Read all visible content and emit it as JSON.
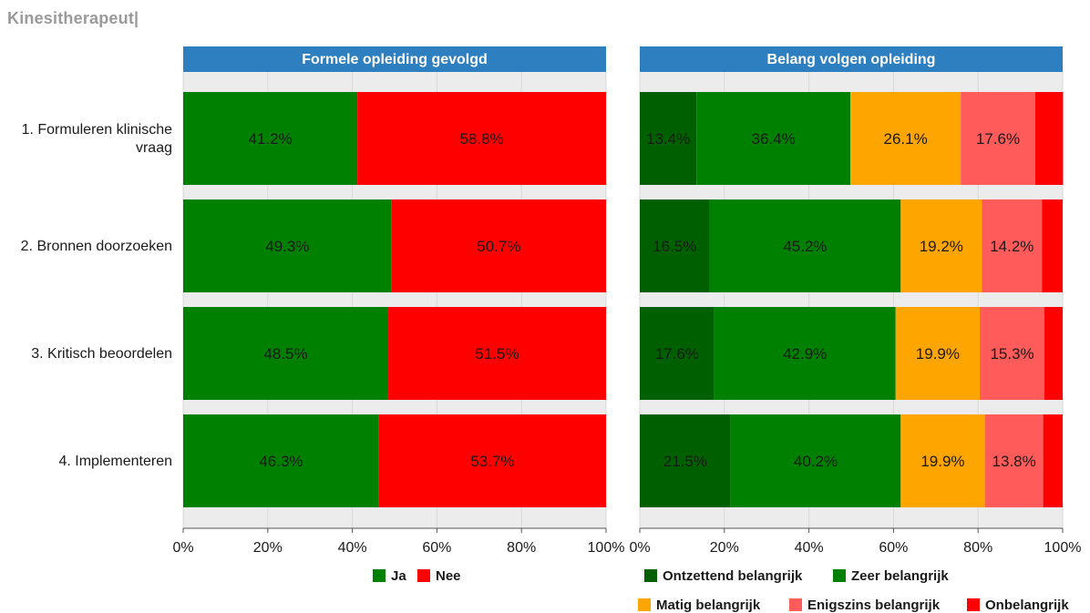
{
  "page": {
    "title": "Kinesitherapeut|"
  },
  "chart_data": {
    "type": "bar",
    "orientation": "horizontal-stacked-100",
    "categories": [
      "1. Formuleren klinische vraag",
      "2. Bronnen doorzoeken",
      "3. Kritisch beoordelen",
      "4. Implementeren"
    ],
    "category_lines": [
      [
        "1. Formuleren klinische",
        "vraag"
      ],
      [
        "2. Bronnen doorzoeken"
      ],
      [
        "3. Kritisch beoordelen"
      ],
      [
        "4. Implementeren"
      ]
    ],
    "xticks": [
      "0%",
      "20%",
      "40%",
      "60%",
      "80%",
      "100%"
    ],
    "xlim": [
      0,
      100
    ],
    "grid": true,
    "panels": [
      {
        "title": "Formele opleiding gevolgd",
        "series": [
          {
            "name": "Ja",
            "color": "#008000",
            "values": [
              41.2,
              49.3,
              48.5,
              46.3
            ],
            "labels": [
              "41.2%",
              "49.3%",
              "48.5%",
              "46.3%"
            ]
          },
          {
            "name": "Nee",
            "color": "#ff0000",
            "values": [
              58.8,
              50.7,
              51.5,
              53.7
            ],
            "labels": [
              "58.8%",
              "50.7%",
              "51.5%",
              "53.7%"
            ]
          }
        ]
      },
      {
        "title": "Belang volgen opleiding",
        "series": [
          {
            "name": "Ontzettend belangrijk",
            "color": "#006000",
            "values": [
              13.4,
              16.5,
              17.6,
              21.5
            ],
            "labels": [
              "13.4%",
              "16.5%",
              "17.6%",
              "21.5%"
            ]
          },
          {
            "name": "Zeer belangrijk",
            "color": "#008000",
            "values": [
              36.4,
              45.2,
              42.9,
              40.2
            ],
            "labels": [
              "36.4%",
              "45.2%",
              "42.9%",
              "40.2%"
            ]
          },
          {
            "name": "Matig belangrijk",
            "color": "#ffa500",
            "values": [
              26.1,
              19.2,
              19.9,
              19.9
            ],
            "labels": [
              "26.1%",
              "19.2%",
              "19.9%",
              "19.9%"
            ]
          },
          {
            "name": "Enigszins belangrijk",
            "color": "#ff5b5b",
            "values": [
              17.6,
              14.2,
              15.3,
              13.8
            ],
            "labels": [
              "17.6%",
              "14.2%",
              "15.3%",
              "13.8%"
            ]
          },
          {
            "name": "Onbelangrijk",
            "color": "#ff0000",
            "values": [
              6.6,
              4.9,
              4.3,
              4.6
            ],
            "labels": [
              "",
              "",
              "",
              ""
            ]
          }
        ]
      }
    ],
    "colors": {
      "header": "#2e7fbf",
      "header_text": "#ffffff",
      "gap": "#ececec",
      "grid": "#d9d9d9"
    }
  }
}
